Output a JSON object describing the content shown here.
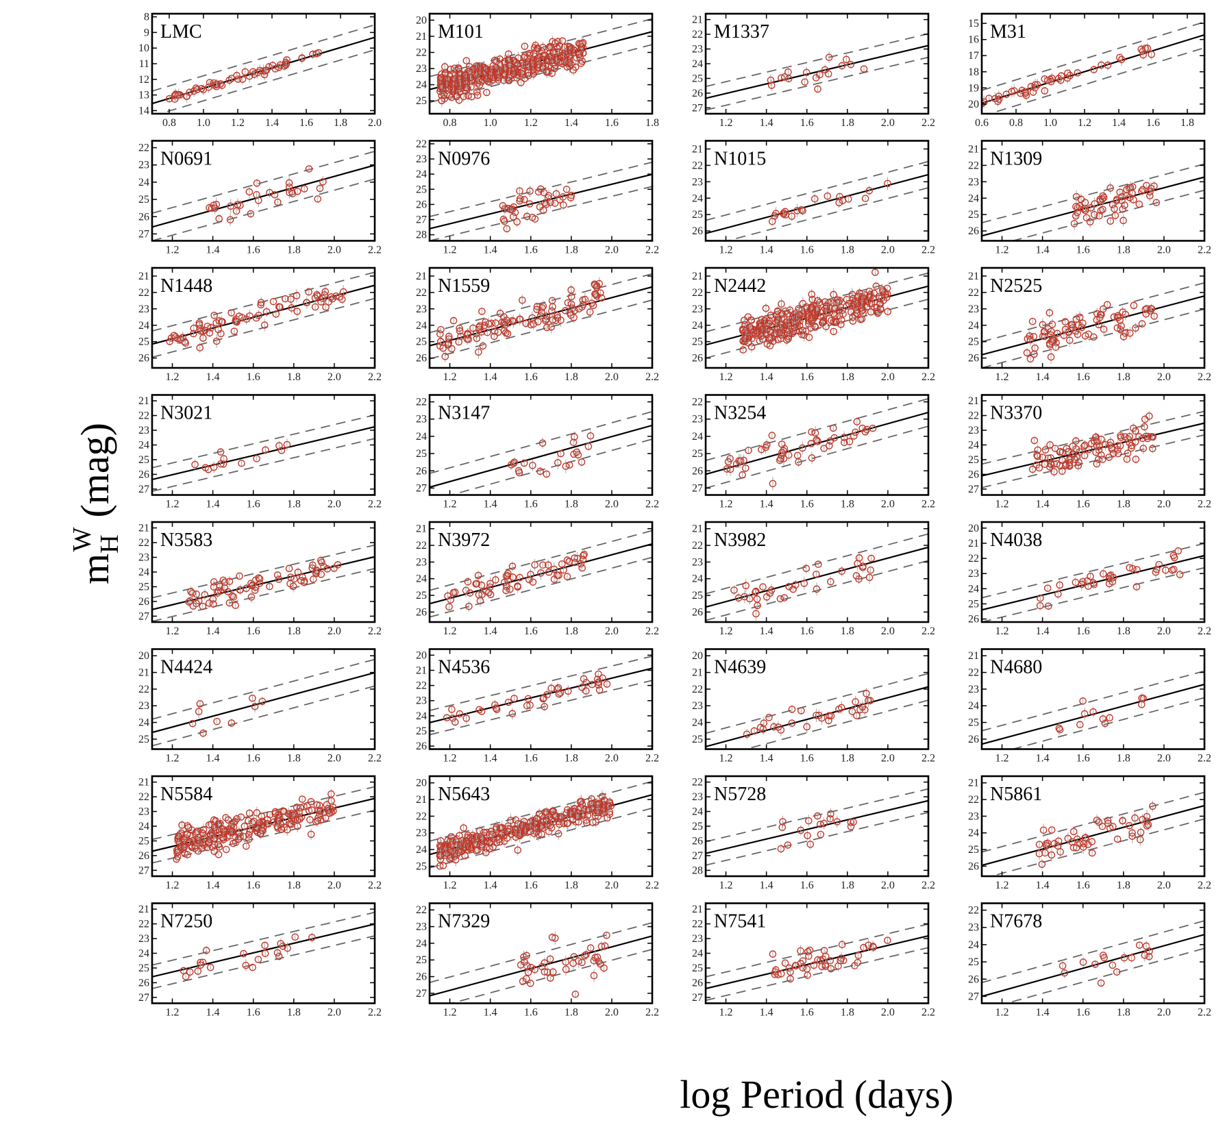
{
  "chart_data": {
    "type": "scatter",
    "xlabel": "log Period (days)",
    "ylabel": "m_H^W (mag)",
    "ylabel_main": "m",
    "ylabel_sub": "H",
    "ylabel_sup": "W",
    "ylabel_unit": "(mag)",
    "slope": -3.26,
    "band_width": 0.8,
    "point_color": "#c0392b",
    "line_color": "#000000",
    "dash_color": "#666666",
    "panels": [
      {
        "name": "LMC",
        "xlim": [
          0.7,
          2.0
        ],
        "ylim": [
          14.2,
          7.8
        ],
        "xticks": [
          "0.8",
          "1.0",
          "1.2",
          "1.4",
          "1.6",
          "1.8",
          "2.0"
        ],
        "yticks": [
          8,
          9,
          10,
          11,
          12,
          13,
          14
        ],
        "line_x0": 0.7,
        "line_y0": 13.55,
        "pmin": 0.8,
        "pmax": 1.72,
        "n": 55,
        "scatter": 0.12,
        "seed": 11
      },
      {
        "name": "M101",
        "xlim": [
          0.7,
          1.8
        ],
        "ylim": [
          25.8,
          19.6
        ],
        "xticks": [
          "0.8",
          "1.0",
          "1.2",
          "1.4",
          "1.6",
          "1.8"
        ],
        "yticks": [
          20,
          21,
          22,
          23,
          24,
          25
        ],
        "line_x0": 0.7,
        "line_y0": 24.3,
        "pmin": 0.75,
        "pmax": 1.46,
        "n": 420,
        "scatter": 0.45,
        "seed": 12
      },
      {
        "name": "M1337",
        "xlim": [
          1.1,
          2.2
        ],
        "ylim": [
          27.4,
          20.6
        ],
        "xticks": [
          "1.2",
          "1.4",
          "1.6",
          "1.8",
          "2.0",
          "2.2"
        ],
        "yticks": [
          21,
          22,
          23,
          24,
          25,
          26,
          27
        ],
        "line_x0": 1.1,
        "line_y0": 26.35,
        "pmin": 1.42,
        "pmax": 1.9,
        "n": 18,
        "scatter": 0.55,
        "seed": 13
      },
      {
        "name": "M31",
        "xlim": [
          0.6,
          1.9
        ],
        "ylim": [
          20.6,
          14.4
        ],
        "xticks": [
          "0.6",
          "0.8",
          "1.0",
          "1.2",
          "1.4",
          "1.6",
          "1.8"
        ],
        "yticks": [
          15,
          16,
          17,
          18,
          19,
          20
        ],
        "line_x0": 0.6,
        "line_y0": 19.95,
        "pmin": 0.6,
        "pmax": 1.75,
        "n": 45,
        "scatter": 0.15,
        "seed": 14
      },
      {
        "name": "N0691",
        "xlim": [
          1.1,
          2.2
        ],
        "ylim": [
          27.4,
          21.6
        ],
        "xticks": [
          "1.2",
          "1.4",
          "1.6",
          "1.8",
          "2.0",
          "2.2"
        ],
        "yticks": [
          22,
          23,
          24,
          25,
          26,
          27
        ],
        "line_x0": 1.1,
        "line_y0": 26.6,
        "pmin": 1.38,
        "pmax": 1.95,
        "n": 30,
        "scatter": 0.4,
        "seed": 15
      },
      {
        "name": "N0976",
        "xlim": [
          1.1,
          2.2
        ],
        "ylim": [
          28.4,
          21.8
        ],
        "xticks": [
          "1.2",
          "1.4",
          "1.6",
          "1.8",
          "2.0",
          "2.2"
        ],
        "yticks": [
          22,
          23,
          24,
          25,
          26,
          27,
          28
        ],
        "line_x0": 1.1,
        "line_y0": 27.6,
        "pmin": 1.46,
        "pmax": 1.85,
        "n": 40,
        "scatter": 0.5,
        "seed": 16
      },
      {
        "name": "N1015",
        "xlim": [
          1.1,
          2.2
        ],
        "ylim": [
          26.6,
          20.5
        ],
        "xticks": [
          "1.2",
          "1.4",
          "1.6",
          "1.8",
          "2.0",
          "2.2"
        ],
        "yticks": [
          21,
          22,
          23,
          24,
          25,
          26
        ],
        "line_x0": 1.1,
        "line_y0": 26.15,
        "pmin": 1.42,
        "pmax": 2.0,
        "n": 20,
        "scatter": 0.3,
        "seed": 17
      },
      {
        "name": "N1309",
        "xlim": [
          1.1,
          2.2
        ],
        "ylim": [
          26.6,
          20.5
        ],
        "xticks": [
          "1.2",
          "1.4",
          "1.6",
          "1.8",
          "2.0",
          "2.2"
        ],
        "yticks": [
          21,
          22,
          23,
          24,
          25,
          26
        ],
        "line_x0": 1.1,
        "line_y0": 26.3,
        "pmin": 1.55,
        "pmax": 1.97,
        "n": 55,
        "scatter": 0.45,
        "seed": 18
      },
      {
        "name": "N1448",
        "xlim": [
          1.1,
          2.2
        ],
        "ylim": [
          26.6,
          20.5
        ],
        "xticks": [
          "1.2",
          "1.4",
          "1.6",
          "1.8",
          "2.0",
          "2.2"
        ],
        "yticks": [
          21,
          22,
          23,
          24,
          25,
          26
        ],
        "line_x0": 1.1,
        "line_y0": 25.15,
        "pmin": 1.18,
        "pmax": 2.05,
        "n": 75,
        "scatter": 0.35,
        "seed": 19
      },
      {
        "name": "N1559",
        "xlim": [
          1.1,
          2.2
        ],
        "ylim": [
          26.6,
          20.5
        ],
        "xticks": [
          "1.2",
          "1.4",
          "1.6",
          "1.8",
          "2.0",
          "2.2"
        ],
        "yticks": [
          21,
          22,
          23,
          24,
          25,
          26
        ],
        "line_x0": 1.1,
        "line_y0": 25.25,
        "pmin": 1.15,
        "pmax": 1.95,
        "n": 110,
        "scatter": 0.5,
        "seed": 20
      },
      {
        "name": "N2442",
        "xlim": [
          1.1,
          2.2
        ],
        "ylim": [
          26.6,
          20.5
        ],
        "xticks": [
          "1.2",
          "1.4",
          "1.6",
          "1.8",
          "2.0",
          "2.2"
        ],
        "yticks": [
          21,
          22,
          23,
          24,
          25,
          26
        ],
        "line_x0": 1.1,
        "line_y0": 25.2,
        "pmin": 1.28,
        "pmax": 2.0,
        "n": 320,
        "scatter": 0.5,
        "seed": 21
      },
      {
        "name": "N2525",
        "xlim": [
          1.1,
          2.2
        ],
        "ylim": [
          26.6,
          20.5
        ],
        "xticks": [
          "1.2",
          "1.4",
          "1.6",
          "1.8",
          "2.0",
          "2.2"
        ],
        "yticks": [
          21,
          22,
          23,
          24,
          25,
          26
        ],
        "line_x0": 1.1,
        "line_y0": 25.8,
        "pmin": 1.32,
        "pmax": 1.97,
        "n": 80,
        "scatter": 0.5,
        "seed": 22
      },
      {
        "name": "N3021",
        "xlim": [
          1.1,
          2.2
        ],
        "ylim": [
          27.4,
          20.6
        ],
        "xticks": [
          "1.2",
          "1.4",
          "1.6",
          "1.8",
          "2.0",
          "2.2"
        ],
        "yticks": [
          21,
          22,
          23,
          24,
          25,
          26,
          27
        ],
        "line_x0": 1.1,
        "line_y0": 26.35,
        "pmin": 1.3,
        "pmax": 1.78,
        "n": 14,
        "scatter": 0.3,
        "seed": 23
      },
      {
        "name": "N3147",
        "xlim": [
          1.1,
          2.2
        ],
        "ylim": [
          27.4,
          21.6
        ],
        "xticks": [
          "1.2",
          "1.4",
          "1.6",
          "1.8",
          "2.0",
          "2.2"
        ],
        "yticks": [
          22,
          23,
          24,
          25,
          26,
          27
        ],
        "line_x0": 1.1,
        "line_y0": 26.95,
        "pmin": 1.47,
        "pmax": 1.9,
        "n": 22,
        "scatter": 0.5,
        "seed": 24
      },
      {
        "name": "N3254",
        "xlim": [
          1.1,
          2.2
        ],
        "ylim": [
          27.4,
          21.6
        ],
        "xticks": [
          "1.2",
          "1.4",
          "1.6",
          "1.8",
          "2.0",
          "2.2"
        ],
        "yticks": [
          22,
          23,
          24,
          25,
          26,
          27
        ],
        "line_x0": 1.1,
        "line_y0": 26.2,
        "pmin": 1.2,
        "pmax": 1.98,
        "n": 50,
        "scatter": 0.55,
        "seed": 25
      },
      {
        "name": "N3370",
        "xlim": [
          1.1,
          2.2
        ],
        "ylim": [
          27.4,
          20.6
        ],
        "xticks": [
          "1.2",
          "1.4",
          "1.6",
          "1.8",
          "2.0",
          "2.2"
        ],
        "yticks": [
          21,
          22,
          23,
          24,
          25,
          26,
          27
        ],
        "line_x0": 1.1,
        "line_y0": 26.1,
        "pmin": 1.35,
        "pmax": 1.98,
        "n": 100,
        "scatter": 0.5,
        "seed": 26
      },
      {
        "name": "N3583",
        "xlim": [
          1.1,
          2.2
        ],
        "ylim": [
          27.4,
          20.6
        ],
        "xticks": [
          "1.2",
          "1.4",
          "1.6",
          "1.8",
          "2.0",
          "2.2"
        ],
        "yticks": [
          21,
          22,
          23,
          24,
          25,
          26,
          27
        ],
        "line_x0": 1.1,
        "line_y0": 26.55,
        "pmin": 1.28,
        "pmax": 2.02,
        "n": 70,
        "scatter": 0.45,
        "seed": 27
      },
      {
        "name": "N3972",
        "xlim": [
          1.1,
          2.2
        ],
        "ylim": [
          26.6,
          20.6
        ],
        "xticks": [
          "1.2",
          "1.4",
          "1.6",
          "1.8",
          "2.0",
          "2.2"
        ],
        "yticks": [
          21,
          22,
          23,
          24,
          25,
          26
        ],
        "line_x0": 1.1,
        "line_y0": 25.5,
        "pmin": 1.18,
        "pmax": 1.88,
        "n": 60,
        "scatter": 0.5,
        "seed": 28
      },
      {
        "name": "N3982",
        "xlim": [
          1.1,
          2.2
        ],
        "ylim": [
          26.6,
          20.6
        ],
        "xticks": [
          "1.2",
          "1.4",
          "1.6",
          "1.8",
          "2.0",
          "2.2"
        ],
        "yticks": [
          21,
          22,
          23,
          24,
          25,
          26
        ],
        "line_x0": 1.1,
        "line_y0": 25.7,
        "pmin": 1.2,
        "pmax": 1.92,
        "n": 35,
        "scatter": 0.5,
        "seed": 29
      },
      {
        "name": "N4038",
        "xlim": [
          1.1,
          2.2
        ],
        "ylim": [
          26.2,
          19.6
        ],
        "xticks": [
          "1.2",
          "1.4",
          "1.6",
          "1.8",
          "2.0",
          "2.2"
        ],
        "yticks": [
          20,
          21,
          22,
          23,
          24,
          25,
          26
        ],
        "line_x0": 1.1,
        "line_y0": 25.4,
        "pmin": 1.38,
        "pmax": 2.1,
        "n": 35,
        "scatter": 0.45,
        "seed": 30
      },
      {
        "name": "N4424",
        "xlim": [
          1.1,
          2.2
        ],
        "ylim": [
          25.6,
          19.6
        ],
        "xticks": [
          "1.2",
          "1.4",
          "1.6",
          "1.8",
          "2.0",
          "2.2"
        ],
        "yticks": [
          20,
          21,
          22,
          23,
          24,
          25
        ],
        "line_x0": 1.1,
        "line_y0": 24.6,
        "pmin": 1.3,
        "pmax": 1.65,
        "n": 9,
        "scatter": 0.6,
        "seed": 31
      },
      {
        "name": "N4536",
        "xlim": [
          1.1,
          2.2
        ],
        "ylim": [
          26.2,
          19.6
        ],
        "xticks": [
          "1.2",
          "1.4",
          "1.6",
          "1.8",
          "2.0",
          "2.2"
        ],
        "yticks": [
          20,
          21,
          22,
          23,
          24,
          25,
          26
        ],
        "line_x0": 1.1,
        "line_y0": 24.45,
        "pmin": 1.18,
        "pmax": 1.98,
        "n": 40,
        "scatter": 0.3,
        "seed": 32
      },
      {
        "name": "N4639",
        "xlim": [
          1.1,
          2.2
        ],
        "ylim": [
          25.6,
          19.6
        ],
        "xticks": [
          "1.2",
          "1.4",
          "1.6",
          "1.8",
          "2.0",
          "2.2"
        ],
        "yticks": [
          20,
          21,
          22,
          23,
          24,
          25
        ],
        "line_x0": 1.1,
        "line_y0": 25.45,
        "pmin": 1.28,
        "pmax": 1.92,
        "n": 30,
        "scatter": 0.3,
        "seed": 33
      },
      {
        "name": "N4680",
        "xlim": [
          1.1,
          2.2
        ],
        "ylim": [
          26.6,
          20.6
        ],
        "xticks": [
          "1.2",
          "1.4",
          "1.6",
          "1.8",
          "2.0",
          "2.2"
        ],
        "yticks": [
          21,
          22,
          23,
          24,
          25,
          26
        ],
        "line_x0": 1.1,
        "line_y0": 26.3,
        "pmin": 1.48,
        "pmax": 1.92,
        "n": 12,
        "scatter": 0.45,
        "seed": 34
      },
      {
        "name": "N5584",
        "xlim": [
          1.1,
          2.2
        ],
        "ylim": [
          27.4,
          20.6
        ],
        "xticks": [
          "1.2",
          "1.4",
          "1.6",
          "1.8",
          "2.0",
          "2.2"
        ],
        "yticks": [
          21,
          22,
          23,
          24,
          25,
          26,
          27
        ],
        "line_x0": 1.1,
        "line_y0": 25.7,
        "pmin": 1.22,
        "pmax": 2.0,
        "n": 230,
        "scatter": 0.5,
        "seed": 35
      },
      {
        "name": "N5643",
        "xlim": [
          1.1,
          2.2
        ],
        "ylim": [
          25.6,
          19.6
        ],
        "xticks": [
          "1.2",
          "1.4",
          "1.6",
          "1.8",
          "2.0",
          "2.2"
        ],
        "yticks": [
          20,
          21,
          22,
          23,
          24,
          25
        ],
        "line_x0": 1.1,
        "line_y0": 24.3,
        "pmin": 1.15,
        "pmax": 2.0,
        "n": 320,
        "scatter": 0.35,
        "seed": 36
      },
      {
        "name": "N5728",
        "xlim": [
          1.1,
          2.2
        ],
        "ylim": [
          28.4,
          21.6
        ],
        "xticks": [
          "1.2",
          "1.4",
          "1.6",
          "1.8",
          "2.0",
          "2.2"
        ],
        "yticks": [
          22,
          23,
          24,
          25,
          26,
          27,
          28
        ],
        "line_x0": 1.1,
        "line_y0": 26.85,
        "pmin": 1.45,
        "pmax": 1.85,
        "n": 18,
        "scatter": 0.6,
        "seed": 37
      },
      {
        "name": "N5861",
        "xlim": [
          1.1,
          2.2
        ],
        "ylim": [
          26.6,
          20.6
        ],
        "xticks": [
          "1.2",
          "1.4",
          "1.6",
          "1.8",
          "2.0",
          "2.2"
        ],
        "yticks": [
          21,
          22,
          23,
          24,
          25,
          26
        ],
        "line_x0": 1.1,
        "line_y0": 25.95,
        "pmin": 1.38,
        "pmax": 1.95,
        "n": 50,
        "scatter": 0.45,
        "seed": 38
      },
      {
        "name": "N7250",
        "xlim": [
          1.1,
          2.2
        ],
        "ylim": [
          27.4,
          20.6
        ],
        "xticks": [
          "1.2",
          "1.4",
          "1.6",
          "1.8",
          "2.0",
          "2.2"
        ],
        "yticks": [
          21,
          22,
          23,
          24,
          25,
          26,
          27
        ],
        "line_x0": 1.1,
        "line_y0": 25.6,
        "pmin": 1.25,
        "pmax": 1.92,
        "n": 22,
        "scatter": 0.5,
        "seed": 39
      },
      {
        "name": "N7329",
        "xlim": [
          1.1,
          2.2
        ],
        "ylim": [
          27.6,
          21.6
        ],
        "xticks": [
          "1.2",
          "1.4",
          "1.6",
          "1.8",
          "2.0",
          "2.2"
        ],
        "yticks": [
          22,
          23,
          24,
          25,
          26,
          27
        ],
        "line_x0": 1.1,
        "line_y0": 27.15,
        "pmin": 1.55,
        "pmax": 1.98,
        "n": 40,
        "scatter": 0.6,
        "seed": 40
      },
      {
        "name": "N7541",
        "xlim": [
          1.1,
          2.2
        ],
        "ylim": [
          27.4,
          20.6
        ],
        "xticks": [
          "1.2",
          "1.4",
          "1.6",
          "1.8",
          "2.0",
          "2.2"
        ],
        "yticks": [
          21,
          22,
          23,
          24,
          25,
          26,
          27
        ],
        "line_x0": 1.1,
        "line_y0": 26.4,
        "pmin": 1.42,
        "pmax": 2.0,
        "n": 45,
        "scatter": 0.45,
        "seed": 41
      },
      {
        "name": "N7678",
        "xlim": [
          1.1,
          2.2
        ],
        "ylim": [
          27.4,
          21.6
        ],
        "xticks": [
          "1.2",
          "1.4",
          "1.6",
          "1.8",
          "2.0",
          "2.2"
        ],
        "yticks": [
          22,
          23,
          24,
          25,
          26,
          27
        ],
        "line_x0": 1.1,
        "line_y0": 27.0,
        "pmin": 1.45,
        "pmax": 1.95,
        "n": 16,
        "scatter": 0.4,
        "seed": 42
      }
    ]
  }
}
